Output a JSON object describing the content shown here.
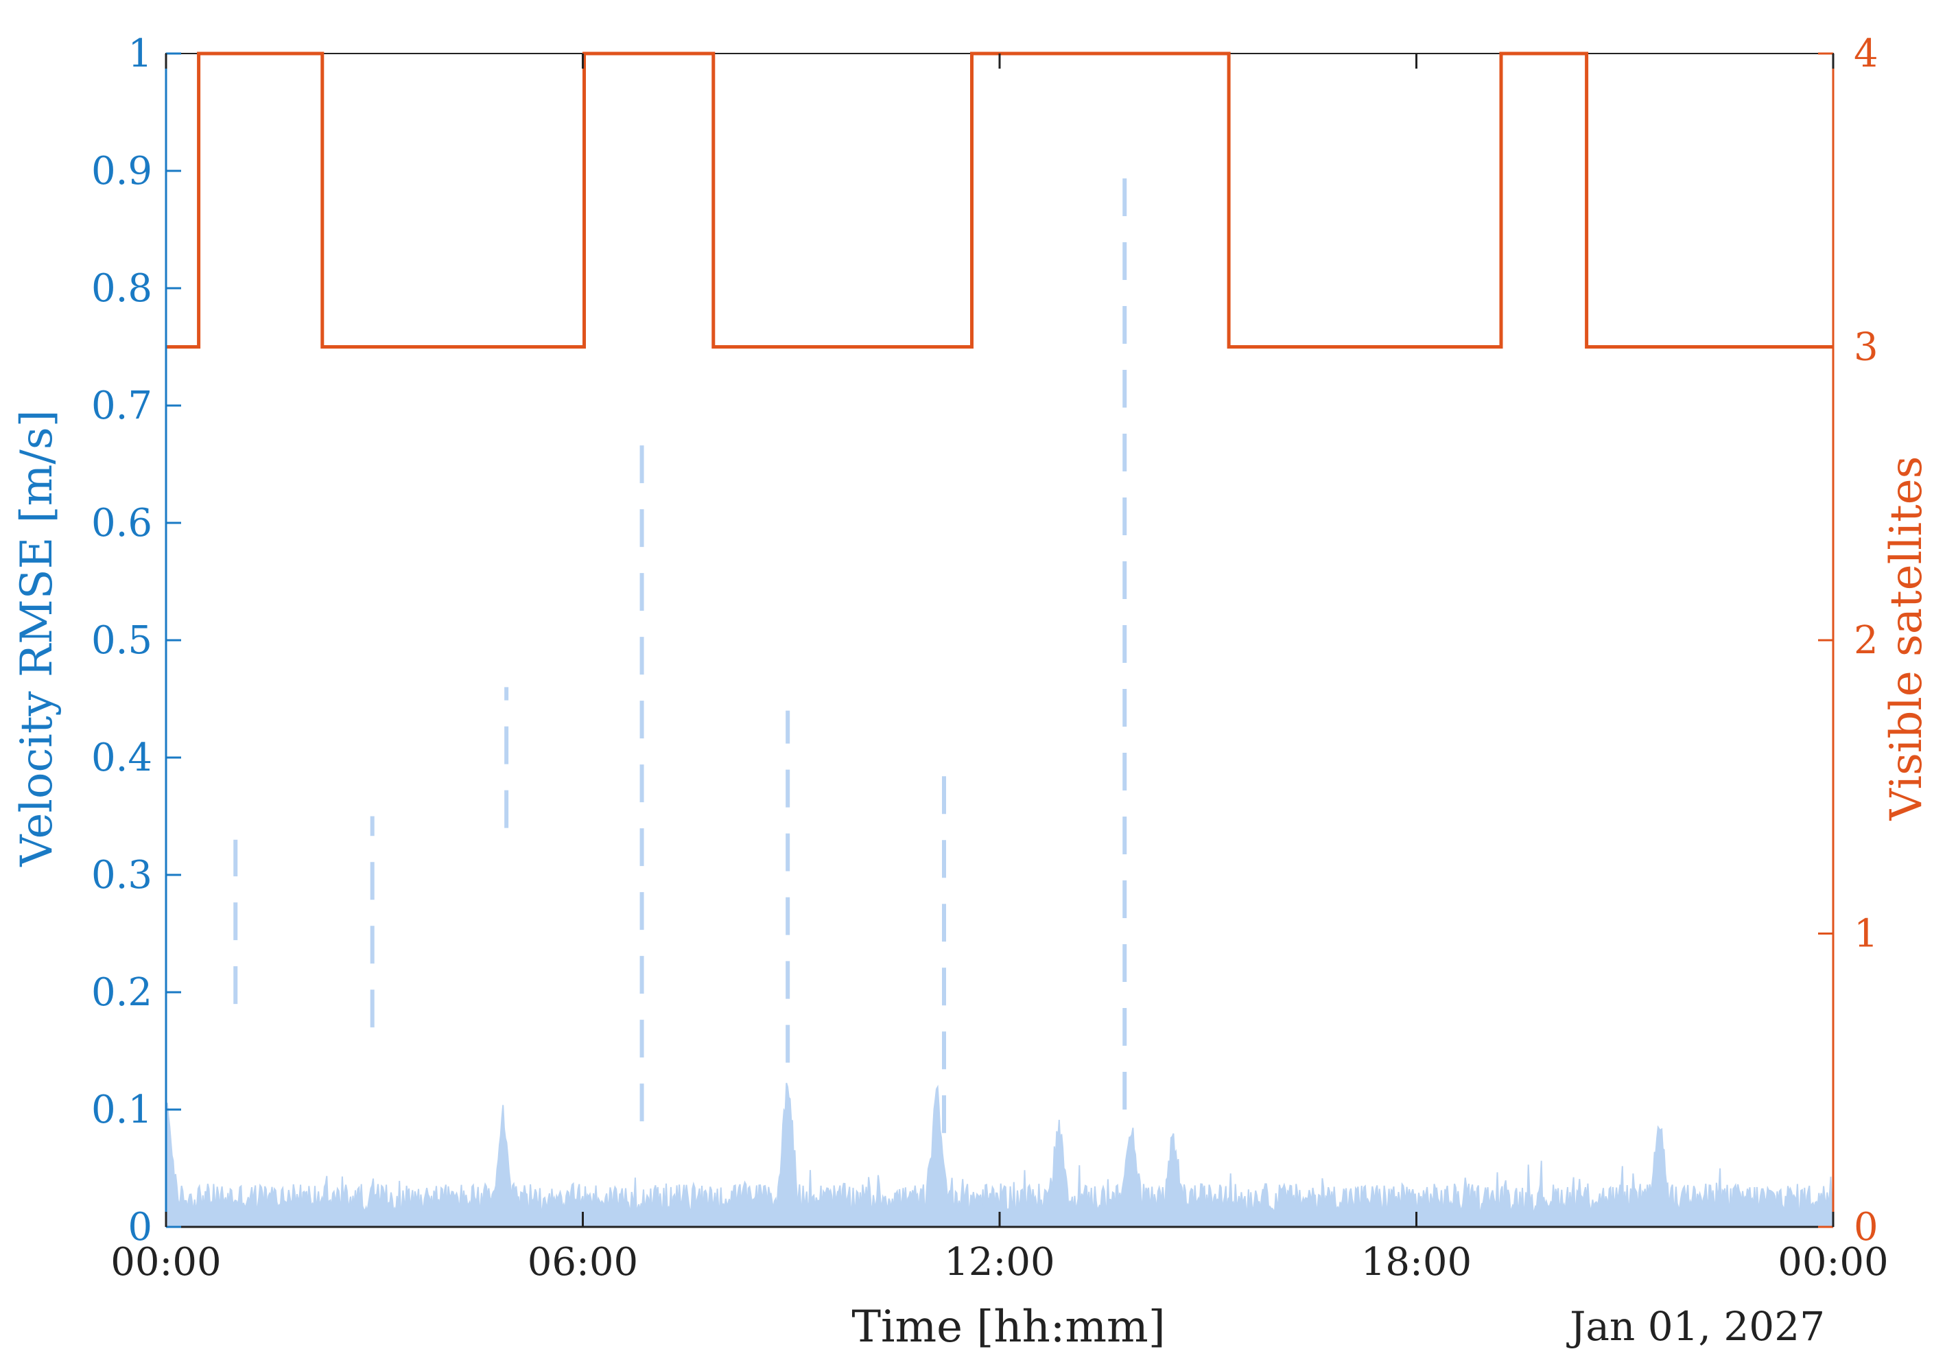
{
  "chart_data": {
    "type": "line",
    "x_axis": {
      "label": "Time [hh:mm]",
      "tick_labels": [
        "00:00",
        "06:00",
        "12:00",
        "18:00",
        "00:00"
      ],
      "range_hours": [
        0,
        24
      ],
      "secondary_label": "Jan 01, 2027",
      "color": "#222222"
    },
    "y_left": {
      "label": "Velocity RMSE [m/s]",
      "range": [
        0,
        1
      ],
      "tick_labels": [
        "0",
        "0.1",
        "0.2",
        "0.3",
        "0.4",
        "0.5",
        "0.6",
        "0.7",
        "0.8",
        "0.9",
        "1"
      ],
      "color": "#1a7ac4"
    },
    "y_right": {
      "label": "Visible satellites",
      "range": [
        0,
        4
      ],
      "tick_labels": [
        "0",
        "1",
        "2",
        "3",
        "4"
      ],
      "color": "#e0531c"
    },
    "grid": false,
    "legend": "none",
    "series": [
      {
        "axis": "right",
        "style": "step",
        "color": "#e0531c",
        "x_hours": [
          0,
          0.47,
          0.47,
          2.25,
          2.25,
          6.02,
          6.02,
          7.88,
          7.88,
          11.6,
          11.6,
          15.3,
          15.3,
          19.22,
          19.22,
          20.45,
          20.45,
          24
        ],
        "values": [
          3,
          3,
          4,
          4,
          3,
          3,
          4,
          4,
          3,
          3,
          4,
          4,
          3,
          3,
          4,
          4,
          3,
          3
        ]
      },
      {
        "axis": "left",
        "style": "noise-band",
        "color": "#b9d3f2",
        "baseline": 0.025,
        "noise_amplitude": 0.012,
        "bumps": [
          {
            "x_hours": 0.02,
            "peak": 0.105
          },
          {
            "x_hours": 4.85,
            "peak": 0.095
          },
          {
            "x_hours": 8.95,
            "peak": 0.13
          },
          {
            "x_hours": 11.1,
            "peak": 0.12
          },
          {
            "x_hours": 12.85,
            "peak": 0.09
          },
          {
            "x_hours": 13.9,
            "peak": 0.09
          },
          {
            "x_hours": 14.5,
            "peak": 0.08
          },
          {
            "x_hours": 21.5,
            "peak": 0.09
          }
        ]
      },
      {
        "axis": "left",
        "style": "dashed-spikes",
        "color": "#b9d3f2",
        "spikes": [
          {
            "x_hours": 1.0,
            "low": 0.19,
            "high": 0.33
          },
          {
            "x_hours": 2.97,
            "low": 0.17,
            "high": 0.35
          },
          {
            "x_hours": 4.9,
            "low": 0.34,
            "high": 0.46
          },
          {
            "x_hours": 6.85,
            "low": 0.09,
            "high": 0.68
          },
          {
            "x_hours": 8.95,
            "low": 0.14,
            "high": 0.44
          },
          {
            "x_hours": 11.2,
            "low": 0.08,
            "high": 0.4
          },
          {
            "x_hours": 13.8,
            "low": 0.1,
            "high": 0.91
          }
        ]
      }
    ]
  }
}
